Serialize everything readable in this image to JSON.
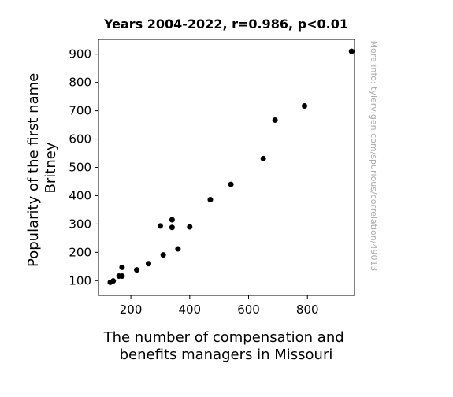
{
  "chart_data": {
    "type": "scatter",
    "title": "Years 2004-2022, r=0.986, p<0.01",
    "xlabel": [
      "The number of compensation and",
      "benefits managers in Missouri"
    ],
    "ylabel": [
      "Popularity of the first name",
      "Britney"
    ],
    "watermark": "More info: tylervigen.com/spurious/correlation/49013",
    "xlim": [
      90,
      960
    ],
    "ylim": [
      48,
      952
    ],
    "xticks": [
      200,
      400,
      600,
      800
    ],
    "yticks": [
      100,
      200,
      300,
      400,
      500,
      600,
      700,
      800,
      900
    ],
    "grid": false,
    "marker_color": "#000000",
    "points": [
      {
        "x": 950,
        "y": 910
      },
      {
        "x": 790,
        "y": 717
      },
      {
        "x": 690,
        "y": 667
      },
      {
        "x": 650,
        "y": 531
      },
      {
        "x": 540,
        "y": 440
      },
      {
        "x": 470,
        "y": 386
      },
      {
        "x": 400,
        "y": 290
      },
      {
        "x": 340,
        "y": 315
      },
      {
        "x": 340,
        "y": 288
      },
      {
        "x": 300,
        "y": 293
      },
      {
        "x": 360,
        "y": 212
      },
      {
        "x": 310,
        "y": 191
      },
      {
        "x": 260,
        "y": 160
      },
      {
        "x": 220,
        "y": 138
      },
      {
        "x": 170,
        "y": 147
      },
      {
        "x": 170,
        "y": 116
      },
      {
        "x": 160,
        "y": 116
      },
      {
        "x": 140,
        "y": 99
      },
      {
        "x": 130,
        "y": 94
      }
    ]
  }
}
